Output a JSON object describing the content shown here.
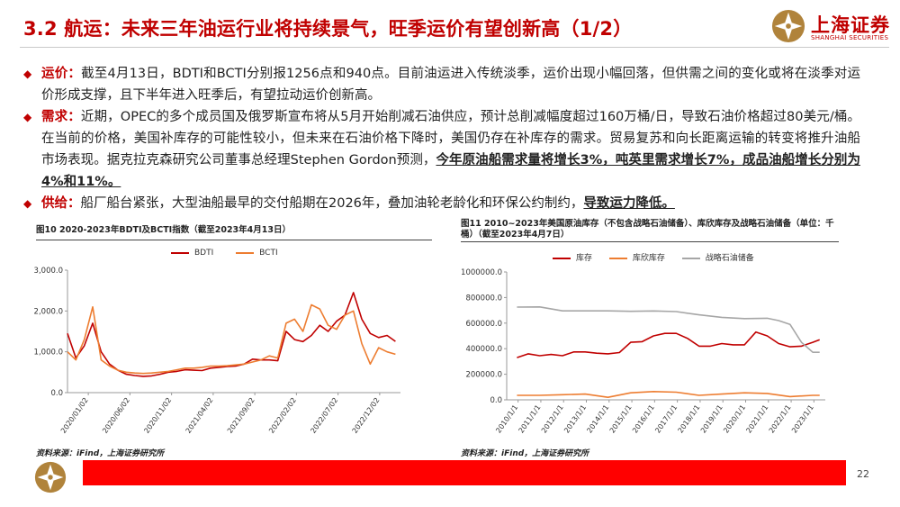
{
  "header": {
    "title": "3.2 航运：未来三年油运行业将持续景气，旺季运价有望创新高（1/2）",
    "logo_cn": "上海证券",
    "logo_en": "SHANGHAI SECURITIES",
    "brand_color": "#c00000"
  },
  "bullets": [
    {
      "label": "运价：",
      "text": "截至4月13日，BDTI和BCTI分别报1256点和940点。目前油运进入传统淡季，运价出现小幅回落，但供需之间的变化或将在淡季对运价形成支撑，且下半年进入旺季后，有望拉动运价创新高。"
    },
    {
      "label": "需求：",
      "text": "近期，OPEC的多个成员国及俄罗斯宣布将从5月开始削减石油供应，预计总削减幅度超过160万桶/日，导致石油价格超过80美元/桶。在当前的价格，美国补库存的可能性较小，但未来在石油价格下降时，美国仍存在补库存的需求。贸易复苏和向长距离运输的转变将推升油船市场表现。据克拉克森研究公司董事总经理Stephen Gordon预测，",
      "emph": "今年原油船需求量将增长3%，吨英里需求增长7%，成品油船增长分别为4%和11%。"
    },
    {
      "label": "供给：",
      "text": "船厂船台紧张，大型油船最早的交付船期在2026年，叠加油轮老龄化和环保公约制约，",
      "emph": "导致运力降低。"
    }
  ],
  "figures": [
    {
      "title": "图10  2020-2023年BDTI及BCTI指数（截至2023年4月13日）",
      "source": "资料来源：iFind，上海证券研究所",
      "chart_data": {
        "type": "line",
        "title": "图10  2020-2023年BDTI及BCTI指数（截至2023年4月13日）",
        "xlabel": "",
        "ylabel": "",
        "x_ticks": [
          "2020/01/02",
          "2020/06/02",
          "2020/11/02",
          "2021/04/02",
          "2021/09/02",
          "2022/02/02",
          "2022/07/02",
          "2022/12/02"
        ],
        "y_ticks": [
          "0.0",
          "1,000.0",
          "2,000.0",
          "3,000.0"
        ],
        "ylim": [
          0,
          3000
        ],
        "grid": false,
        "legend": "top",
        "series": [
          {
            "name": "BDTI",
            "color": "#c00000",
            "x": [
              "2020-01",
              "2020-02",
              "2020-03",
              "2020-04",
              "2020-05",
              "2020-06",
              "2020-07",
              "2020-08",
              "2020-09",
              "2020-10",
              "2020-11",
              "2020-12",
              "2021-01",
              "2021-02",
              "2021-03",
              "2021-04",
              "2021-05",
              "2021-06",
              "2021-07",
              "2021-08",
              "2021-09",
              "2021-10",
              "2021-11",
              "2021-12",
              "2022-01",
              "2022-02",
              "2022-03",
              "2022-04",
              "2022-05",
              "2022-06",
              "2022-07",
              "2022-08",
              "2022-09",
              "2022-10",
              "2022-11",
              "2022-12",
              "2023-01",
              "2023-02",
              "2023-03",
              "2023-04"
            ],
            "values": [
              1450,
              850,
              1150,
              1700,
              1000,
              700,
              550,
              450,
              420,
              400,
              410,
              450,
              500,
              520,
              560,
              550,
              540,
              600,
              620,
              640,
              650,
              700,
              820,
              800,
              800,
              780,
              1500,
              1300,
              1250,
              1400,
              1650,
              1500,
              1750,
              1900,
              2450,
              1800,
              1450,
              1350,
              1400,
              1256
            ]
          },
          {
            "name": "BCTI",
            "color": "#ed7d31",
            "x": [
              "2020-01",
              "2020-02",
              "2020-03",
              "2020-04",
              "2020-05",
              "2020-06",
              "2020-07",
              "2020-08",
              "2020-09",
              "2020-10",
              "2020-11",
              "2020-12",
              "2021-01",
              "2021-02",
              "2021-03",
              "2021-04",
              "2021-05",
              "2021-06",
              "2021-07",
              "2021-08",
              "2021-09",
              "2021-10",
              "2021-11",
              "2021-12",
              "2022-01",
              "2022-02",
              "2022-03",
              "2022-04",
              "2022-05",
              "2022-06",
              "2022-07",
              "2022-08",
              "2022-09",
              "2022-10",
              "2022-11",
              "2022-12",
              "2023-01",
              "2023-02",
              "2023-03",
              "2023-04"
            ],
            "values": [
              1000,
              800,
              1300,
              2100,
              800,
              650,
              550,
              500,
              480,
              470,
              480,
              500,
              520,
              560,
              600,
              600,
              620,
              650,
              650,
              660,
              680,
              700,
              750,
              800,
              900,
              850,
              1700,
              1800,
              1500,
              2150,
              2050,
              1650,
              1550,
              1900,
              2000,
              1200,
              700,
              1100,
              1000,
              940
            ]
          }
        ]
      }
    },
    {
      "title": "图11  2010~2023年美国原油库存（不包含战略石油储备）、库欣库存及战略石油储备（单位：千桶）（截至2023年4月7日）",
      "source": "资料来源：iFind，上海证券研究所",
      "chart_data": {
        "type": "line",
        "title": "图11  2010~2023年美国原油库存（不包含战略石油储备）、库欣库存及战略石油储备（单位：千桶）（截至2023年4月7日）",
        "xlabel": "",
        "ylabel": "",
        "x_ticks": [
          "2010/1/1",
          "2011/1/1",
          "2012/1/1",
          "2013/1/1",
          "2014/1/1",
          "2015/1/1",
          "2016/1/1",
          "2017/1/1",
          "2018/1/1",
          "2019/1/1",
          "2020/1/1",
          "2021/1/1",
          "2022/1/1",
          "2023/1/1"
        ],
        "y_ticks": [
          "0.0",
          "200000.0",
          "400000.0",
          "600000.0",
          "800000.0",
          "1000000.0"
        ],
        "ylim": [
          0,
          1000000
        ],
        "grid": false,
        "legend": "top",
        "series": [
          {
            "name": "库存",
            "color": "#c00000",
            "x": [
              2010,
              2010.5,
              2011,
              2011.5,
              2012,
              2012.5,
              2013,
              2013.5,
              2014,
              2014.5,
              2015,
              2015.5,
              2016,
              2016.5,
              2017,
              2017.5,
              2018,
              2018.5,
              2019,
              2019.5,
              2020,
              2020.5,
              2021,
              2021.5,
              2022,
              2022.5,
              2023,
              2023.3
            ],
            "values": [
              330000,
              360000,
              345000,
              355000,
              345000,
              375000,
              375000,
              365000,
              360000,
              370000,
              450000,
              455000,
              500000,
              520000,
              520000,
              480000,
              420000,
              420000,
              440000,
              430000,
              430000,
              530000,
              500000,
              440000,
              415000,
              420000,
              450000,
              470000
            ]
          },
          {
            "name": "库欣库存",
            "color": "#ed7d31",
            "x": [
              2010,
              2011,
              2012,
              2013,
              2014,
              2015,
              2016,
              2017,
              2018,
              2019,
              2020,
              2021,
              2022,
              2023,
              2023.3
            ],
            "values": [
              35000,
              35000,
              40000,
              45000,
              20000,
              55000,
              65000,
              60000,
              35000,
              45000,
              55000,
              50000,
              25000,
              35000,
              35000
            ]
          },
          {
            "name": "战略石油储备",
            "color": "#a6a6a6",
            "x": [
              2010,
              2011,
              2012,
              2013,
              2014,
              2015,
              2016,
              2017,
              2018,
              2019,
              2020,
              2021,
              2021.5,
              2022,
              2022.5,
              2023,
              2023.3
            ],
            "values": [
              725000,
              727000,
              696000,
              696000,
              696000,
              692000,
              695000,
              690000,
              665000,
              645000,
              635000,
              638000,
              620000,
              590000,
              450000,
              372000,
              372000
            ]
          }
        ]
      }
    }
  ],
  "footer": {
    "page_number": "22",
    "bar_color": "#ff0000"
  }
}
